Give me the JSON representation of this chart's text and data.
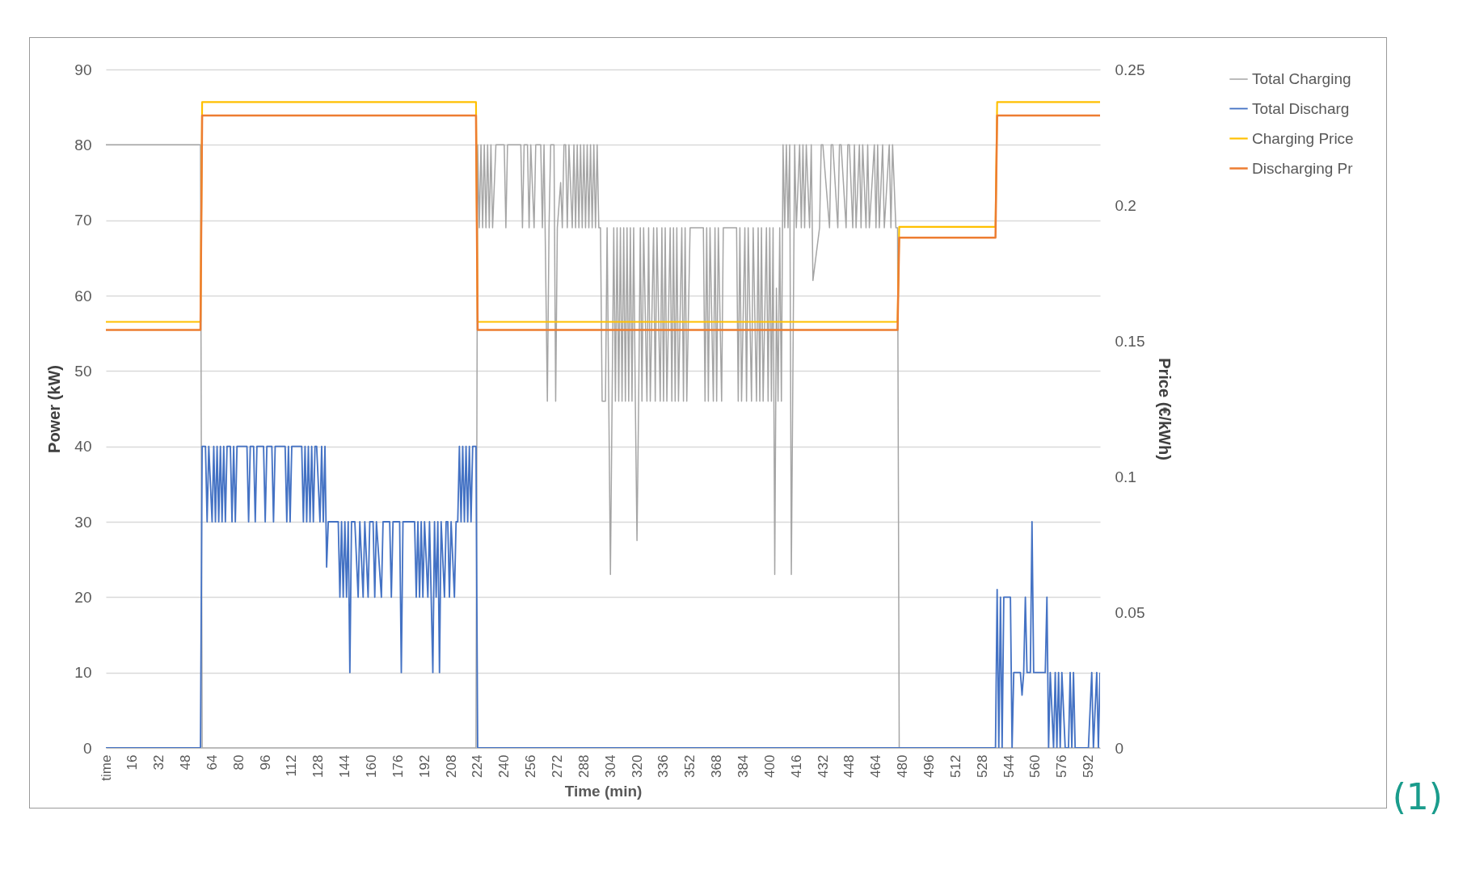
{
  "chart_data": {
    "type": "line",
    "xlabel": "Time (min)",
    "ylabel": "Power (kW)",
    "y2label": "Price (€/kWh)",
    "xlim": [
      0,
      599
    ],
    "xticks": [
      {
        "value": 0,
        "label": "time"
      },
      16,
      32,
      48,
      64,
      80,
      96,
      112,
      128,
      144,
      160,
      176,
      192,
      208,
      224,
      240,
      256,
      272,
      288,
      304,
      320,
      336,
      352,
      368,
      384,
      400,
      416,
      432,
      448,
      464,
      480,
      496,
      512,
      528,
      544,
      560,
      576,
      592
    ],
    "ylim": [
      0,
      90
    ],
    "yticks": [
      0,
      10,
      20,
      30,
      40,
      50,
      60,
      70,
      80,
      90
    ],
    "y2lim": [
      0,
      0.25
    ],
    "y2ticks": [
      0,
      0.05,
      0.1,
      0.15,
      0.2,
      0.25
    ],
    "grid": "y",
    "legend": "right",
    "marker": "none",
    "line_style": "solid",
    "annotations": [
      "(1)"
    ],
    "series": [
      {
        "name": "Total Charging",
        "color": "#a5a5a5",
        "x": [
          0,
          57,
          58,
          223,
          224,
          225,
          226,
          227,
          228,
          229,
          230,
          231,
          232,
          233,
          235,
          240,
          241,
          242,
          250,
          251,
          252,
          254,
          255,
          256,
          258,
          259,
          262,
          263,
          264,
          266,
          267,
          268,
          270,
          271,
          272,
          274,
          275,
          276,
          277,
          278,
          279,
          281,
          282,
          283,
          284,
          285,
          286,
          287,
          288,
          289,
          290,
          291,
          292,
          293,
          294,
          295,
          296,
          297,
          298,
          299,
          300,
          301,
          302,
          303,
          304,
          305,
          306,
          307,
          308,
          309,
          310,
          311,
          312,
          313,
          314,
          315,
          316,
          317,
          318,
          319,
          320,
          321,
          322,
          323,
          324,
          326,
          327,
          328,
          330,
          331,
          332,
          334,
          335,
          336,
          337,
          338,
          340,
          341,
          342,
          343,
          344,
          345,
          347,
          348,
          349,
          350,
          352,
          360,
          361,
          362,
          363,
          364,
          366,
          367,
          368,
          369,
          371,
          372,
          380,
          381,
          382,
          383,
          385,
          386,
          387,
          389,
          390,
          392,
          393,
          394,
          395,
          396,
          398,
          399,
          400,
          401,
          402,
          403,
          404,
          405,
          406,
          407,
          408,
          409,
          410,
          411,
          412,
          413,
          415,
          416,
          418,
          419,
          420,
          421,
          422,
          424,
          425,
          426,
          430,
          431,
          432,
          436,
          437,
          438,
          441,
          442,
          443,
          446,
          447,
          448,
          450,
          451,
          452,
          454,
          455,
          456,
          458,
          459,
          460,
          463,
          464,
          465,
          466,
          468,
          469,
          472,
          473,
          474,
          476,
          477,
          478,
          599
        ],
        "values": [
          80,
          80,
          0,
          0,
          80,
          69,
          80,
          69,
          80,
          69,
          80,
          69,
          80,
          69,
          80,
          80,
          69,
          80,
          80,
          69,
          80,
          80,
          69,
          80,
          69,
          80,
          80,
          69,
          80,
          46,
          69,
          80,
          80,
          46,
          69,
          75,
          69,
          80,
          80,
          69,
          80,
          69,
          80,
          69,
          80,
          69,
          80,
          69,
          80,
          69,
          80,
          69,
          80,
          69,
          80,
          69,
          80,
          69,
          69,
          46,
          46,
          46,
          69,
          46,
          23,
          46,
          69,
          46,
          69,
          46,
          69,
          46,
          69,
          46,
          69,
          46,
          69,
          46,
          69,
          46,
          27.5,
          46,
          69,
          46,
          69,
          46,
          69,
          46,
          69,
          46,
          69,
          46,
          69,
          46,
          69,
          46,
          69,
          46,
          69,
          46,
          69,
          46,
          69,
          46,
          69,
          46,
          69,
          69,
          46,
          69,
          46,
          69,
          46,
          69,
          46,
          69,
          46,
          69,
          69,
          46,
          69,
          46,
          69,
          46,
          69,
          46,
          69,
          46,
          69,
          46,
          69,
          46,
          69,
          46,
          69,
          46,
          69,
          23,
          61,
          46,
          69,
          46,
          80,
          69,
          80,
          69,
          80,
          23,
          80,
          69,
          80,
          69,
          80,
          69,
          80,
          69,
          80,
          62,
          69,
          80,
          80,
          69,
          80,
          80,
          69,
          80,
          80,
          69,
          80,
          80,
          69,
          80,
          69,
          80,
          69,
          80,
          69,
          80,
          69,
          80,
          69,
          80,
          69,
          80,
          69,
          80,
          69,
          80,
          69,
          69,
          0,
          0
        ]
      },
      {
        "name": "Total Discharg",
        "color": "#4472c4",
        "x": [
          0,
          57,
          58,
          60,
          61,
          62,
          64,
          65,
          66,
          67,
          68,
          69,
          70,
          71,
          72,
          73,
          75,
          76,
          77,
          78,
          79,
          85,
          86,
          87,
          89,
          90,
          91,
          95,
          96,
          97,
          100,
          101,
          102,
          108,
          109,
          110,
          111,
          112,
          118,
          119,
          120,
          121,
          122,
          123,
          124,
          125,
          126,
          127,
          129,
          130,
          131,
          132,
          133,
          134,
          140,
          141,
          142,
          143,
          144,
          145,
          146,
          147,
          148,
          150,
          152,
          153,
          155,
          156,
          158,
          159,
          161,
          162,
          163,
          166,
          167,
          171,
          172,
          173,
          177,
          178,
          179,
          186,
          187,
          188,
          189,
          190,
          191,
          192,
          194,
          195,
          196,
          197,
          198,
          199,
          200,
          201,
          202,
          204,
          205,
          206,
          207,
          208,
          210,
          211,
          212,
          213,
          214,
          215,
          216,
          217,
          218,
          219,
          220,
          221,
          223,
          224,
          536,
          537,
          538,
          539,
          540,
          541,
          545,
          546,
          547,
          551,
          552,
          553,
          554,
          555,
          557,
          558,
          559,
          566,
          567,
          568,
          569,
          571,
          572,
          573,
          574,
          575,
          576,
          578,
          580,
          581,
          582,
          583,
          584,
          592,
          594,
          595,
          597,
          598,
          599
        ],
        "values": [
          0,
          0,
          40,
          40,
          30,
          40,
          30,
          40,
          30,
          40,
          30,
          40,
          30,
          40,
          30,
          40,
          40,
          30,
          40,
          30,
          40,
          40,
          30,
          40,
          40,
          30,
          40,
          40,
          30,
          40,
          40,
          30,
          40,
          40,
          30,
          40,
          30,
          40,
          40,
          30,
          40,
          30,
          40,
          30,
          40,
          30,
          40,
          40,
          30,
          40,
          30,
          40,
          24,
          30,
          30,
          20,
          30,
          20,
          30,
          20,
          30,
          10,
          30,
          30,
          20,
          30,
          20,
          30,
          20,
          30,
          30,
          20,
          30,
          20,
          30,
          30,
          20,
          30,
          30,
          10,
          30,
          30,
          20,
          30,
          20,
          30,
          20,
          30,
          20,
          30,
          20,
          10,
          30,
          20,
          30,
          10,
          30,
          20,
          30,
          30,
          20,
          30,
          20,
          30,
          30,
          40,
          30,
          40,
          30,
          40,
          30,
          40,
          30,
          40,
          40,
          0,
          0,
          21,
          0,
          20,
          0,
          20,
          20,
          0,
          10,
          10,
          7,
          10,
          20,
          10,
          10,
          30,
          10,
          10,
          20,
          0,
          10,
          0,
          10,
          0,
          10,
          0,
          10,
          0,
          0,
          10,
          0,
          10,
          0,
          0,
          10,
          0,
          10,
          0,
          10
        ]
      },
      {
        "name": "Charging Price",
        "color": "#ffc000",
        "axis": "y2",
        "x": [
          0,
          57,
          58,
          223,
          224,
          477,
          478,
          536,
          537,
          599
        ],
        "values": [
          0.157,
          0.157,
          0.238,
          0.238,
          0.157,
          0.157,
          0.192,
          0.192,
          0.238,
          0.238
        ]
      },
      {
        "name": "Discharging Pr",
        "color": "#ed7d31",
        "axis": "y2",
        "x": [
          0,
          57,
          58,
          223,
          224,
          477,
          478,
          536,
          537,
          599
        ],
        "values": [
          0.154,
          0.154,
          0.233,
          0.233,
          0.154,
          0.154,
          0.188,
          0.188,
          0.233,
          0.233
        ]
      }
    ]
  }
}
